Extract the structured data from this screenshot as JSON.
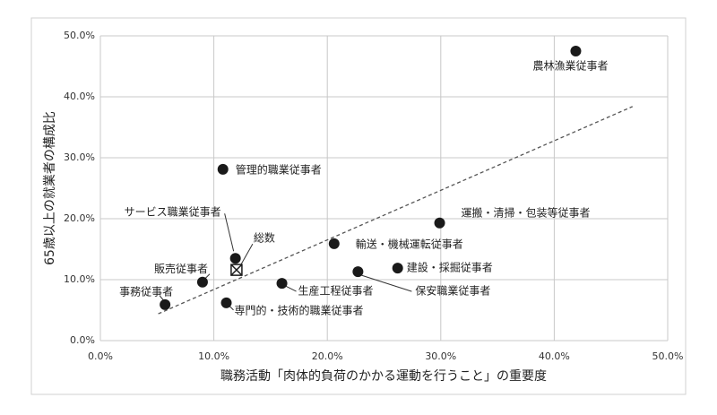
{
  "chart_data": {
    "type": "scatter",
    "x_label": "職務活動「肉体的負荷のかかる運動を行うこと」の重要度",
    "y_label": "65歳以上の就業者の構成比",
    "xlim": [
      0,
      50
    ],
    "ylim": [
      0,
      50
    ],
    "xticks": [
      {
        "value": 0,
        "label": "0.0%"
      },
      {
        "value": 10,
        "label": "10.0%"
      },
      {
        "value": 20,
        "label": "20.0%"
      },
      {
        "value": 30,
        "label": "30.0%"
      },
      {
        "value": 40,
        "label": "40.0%"
      },
      {
        "value": 50,
        "label": "50.0%"
      }
    ],
    "yticks": [
      {
        "value": 0,
        "label": "0.0%"
      },
      {
        "value": 10,
        "label": "10.0%"
      },
      {
        "value": 20,
        "label": "20.0%"
      },
      {
        "value": 30,
        "label": "30.0%"
      },
      {
        "value": 40,
        "label": "40.0%"
      },
      {
        "value": 50,
        "label": "50.0%"
      }
    ],
    "grid": true,
    "series": [
      {
        "marker": "circle",
        "color": "#1a1a1a",
        "labels": [
          "農林漁業従事者",
          "管理的職業従事者",
          "運搬・清掃・包装等従事者",
          "サービス職業従事者",
          "輸送・機械運転従事者",
          "建設・採掘従事者",
          "保安職業従事者",
          "販売従事者",
          "生産工程従事者",
          "事務従事者",
          "専門的・技術的職業従事者"
        ],
        "x": [
          41.9,
          10.8,
          29.9,
          11.9,
          20.6,
          26.2,
          22.7,
          9.0,
          16.0,
          5.7,
          11.1
        ],
        "values": [
          47.5,
          28.1,
          19.3,
          13.5,
          15.9,
          11.9,
          11.3,
          9.6,
          9.4,
          5.9,
          6.2
        ]
      },
      {
        "marker": "square-x",
        "color": "#1a1a1a",
        "labels": [
          "総数"
        ],
        "x": [
          12.0
        ],
        "values": [
          11.6
        ]
      }
    ],
    "trendline": {
      "x": [
        5.1,
        46.9
      ],
      "y": [
        4.4,
        38.4
      ],
      "style": "dashed",
      "color": "#555555"
    }
  }
}
